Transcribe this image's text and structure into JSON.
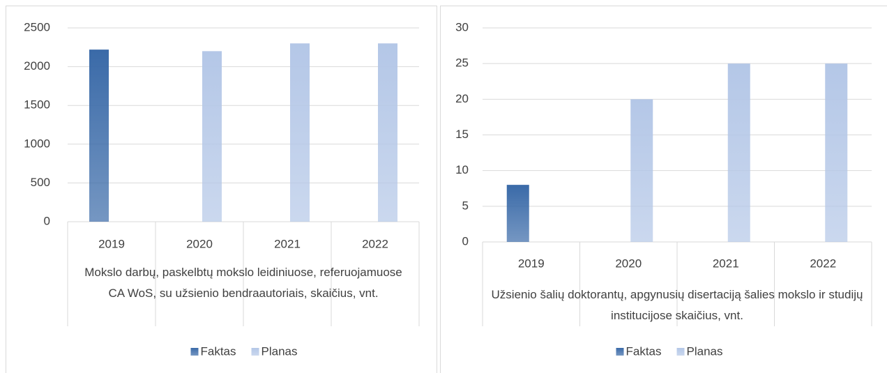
{
  "chart_data": [
    {
      "type": "bar",
      "x_label": "Mokslo darbų, paskelbtų mokslo leidiniuose, referuojamuose CA WoS, su užsienio bendraautoriais, skaičius, vnt.",
      "categories": [
        "2019",
        "2020",
        "2021",
        "2022"
      ],
      "series": [
        {
          "name": "Faktas",
          "color": "#3a6aa8",
          "values": [
            2220,
            null,
            null,
            null
          ]
        },
        {
          "name": "Planas",
          "color": "#b4c7e7",
          "values": [
            null,
            2200,
            2300,
            2300
          ]
        }
      ],
      "ylim": [
        0,
        2500
      ],
      "yticks": [
        0,
        500,
        1000,
        1500,
        2000,
        2500
      ],
      "grid": true,
      "legend": "bottom"
    },
    {
      "type": "bar",
      "x_label": "Užsienio šalių doktorantų, apgynusių disertaciją šalies mokslo ir studijų institucijose skaičius, vnt.",
      "categories": [
        "2019",
        "2020",
        "2021",
        "2022"
      ],
      "series": [
        {
          "name": "Faktas",
          "color": "#3a6aa8",
          "values": [
            8,
            null,
            null,
            null
          ]
        },
        {
          "name": "Planas",
          "color": "#b4c7e7",
          "values": [
            null,
            20,
            25,
            25
          ]
        }
      ],
      "ylim": [
        0,
        30
      ],
      "yticks": [
        0,
        5,
        10,
        15,
        20,
        25,
        30
      ],
      "grid": true,
      "legend": "bottom"
    }
  ]
}
